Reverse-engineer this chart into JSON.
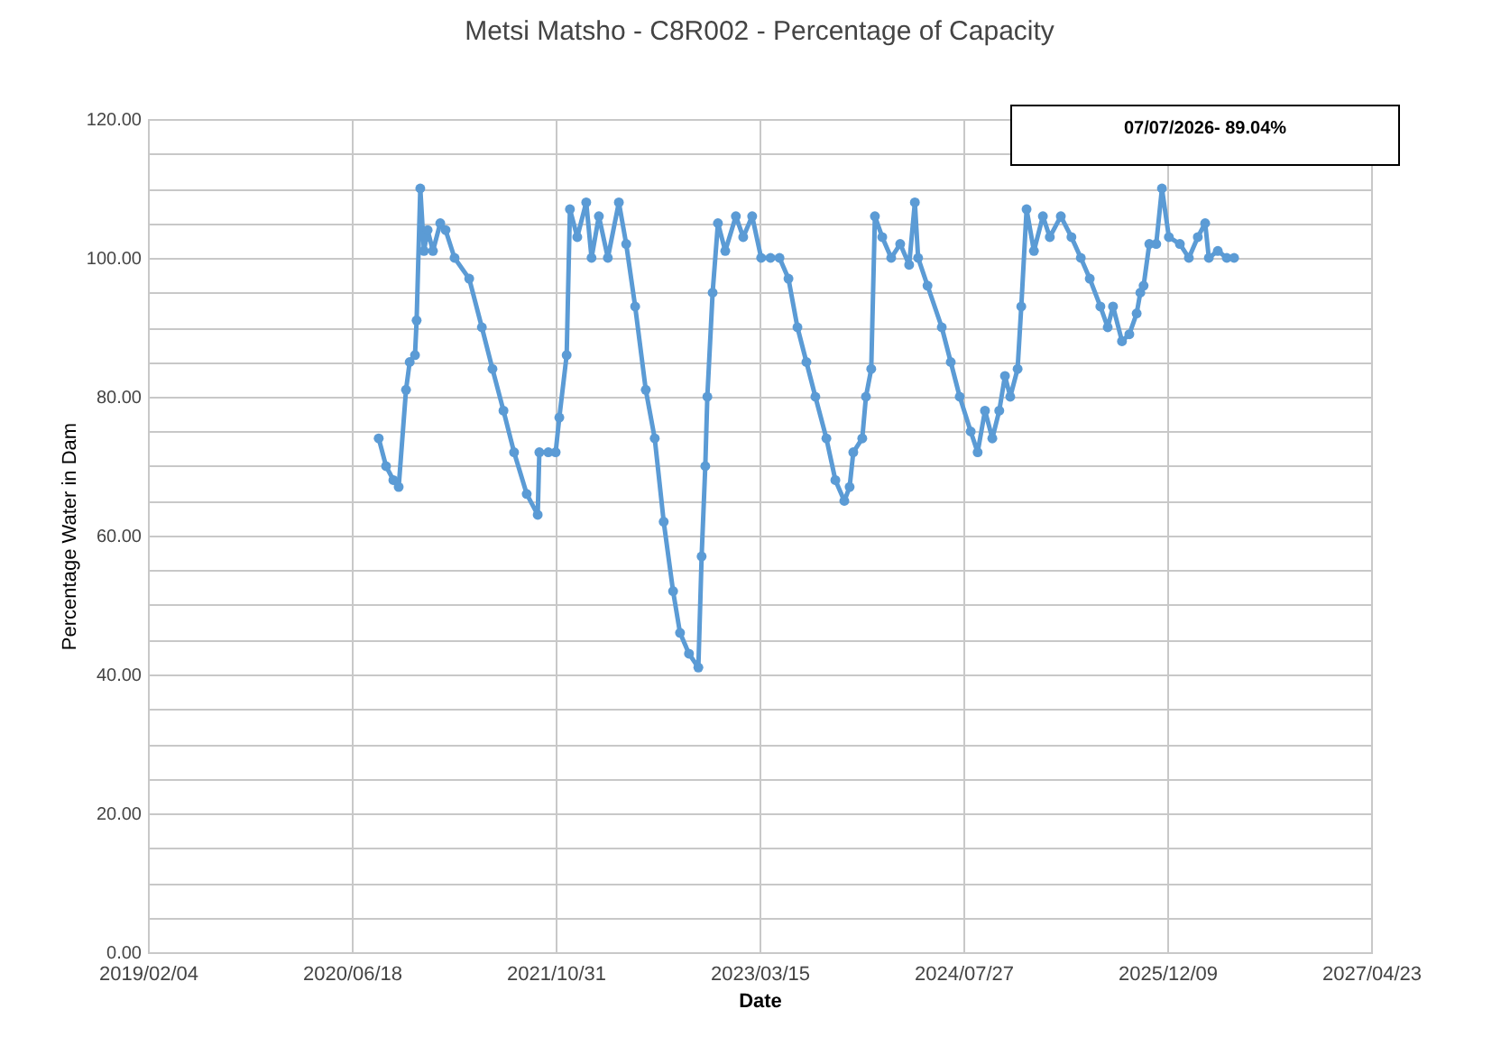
{
  "chart_data": {
    "type": "line",
    "title": "Metsi Matsho - C8R002 - Percentage of Capacity",
    "xlabel": "Date",
    "ylabel": "Percentage Water in Dam",
    "annotations": [
      "07/07/2026- 89.04%"
    ],
    "x": [
      "2020-08-23",
      "2020-09-10",
      "2020-09-28",
      "2020-10-11",
      "2020-10-29",
      "2020-11-07",
      "2020-11-20",
      "2020-11-24",
      "2020-12-03",
      "2020-12-12",
      "2020-12-21",
      "2021-01-03",
      "2021-01-21",
      "2021-02-03",
      "2021-02-25",
      "2021-04-02",
      "2021-05-03",
      "2021-05-29",
      "2021-06-25",
      "2021-07-21",
      "2021-08-21",
      "2021-09-17",
      "2021-09-21",
      "2021-10-13",
      "2021-10-31",
      "2021-11-09",
      "2021-11-27",
      "2021-12-05",
      "2021-12-23",
      "2022-01-14",
      "2022-01-27",
      "2022-02-14",
      "2022-03-08",
      "2022-04-04",
      "2022-04-22",
      "2022-05-14",
      "2022-06-09",
      "2022-07-01",
      "2022-07-23",
      "2022-08-15",
      "2022-09-01",
      "2022-09-23",
      "2022-10-16",
      "2022-10-24",
      "2022-11-02",
      "2022-11-07",
      "2022-11-20",
      "2022-12-03",
      "2022-12-21",
      "2023-01-16",
      "2023-02-03",
      "2023-02-25",
      "2023-03-19",
      "2023-04-11",
      "2023-05-03",
      "2023-05-25",
      "2023-06-16",
      "2023-07-08",
      "2023-07-30",
      "2023-08-26",
      "2023-09-17",
      "2023-10-09",
      "2023-10-22",
      "2023-10-31",
      "2023-11-22",
      "2023-12-01",
      "2023-12-14",
      "2023-12-23",
      "2024-01-10",
      "2024-02-01",
      "2024-02-23",
      "2024-03-16",
      "2024-03-30",
      "2024-04-07",
      "2024-04-30",
      "2024-06-04",
      "2024-06-26",
      "2024-07-18",
      "2024-08-14",
      "2024-08-31",
      "2024-09-18",
      "2024-10-06",
      "2024-10-23",
      "2024-11-06",
      "2024-11-19",
      "2024-12-07",
      "2024-12-16",
      "2024-12-29",
      "2025-01-16",
      "2025-02-07",
      "2025-02-24",
      "2025-03-23",
      "2025-04-18",
      "2025-05-11",
      "2025-06-02",
      "2025-06-28",
      "2025-07-16",
      "2025-07-29",
      "2025-08-20",
      "2025-09-07",
      "2025-09-25",
      "2025-10-04",
      "2025-10-12",
      "2025-10-26",
      "2025-11-12",
      "2025-11-26",
      "2025-12-13",
      "2026-01-09",
      "2026-01-31",
      "2026-02-22",
      "2026-03-12",
      "2026-03-21",
      "2026-04-12",
      "2026-05-04",
      "2026-05-22"
    ],
    "series": [
      {
        "color": "#5b9bd5",
        "values": [
          74,
          70,
          68,
          67,
          81,
          85,
          86,
          91,
          110,
          101,
          104,
          101,
          105,
          104,
          100,
          97,
          90,
          84,
          78,
          72,
          66,
          63,
          72,
          72,
          72,
          77,
          86,
          107,
          103,
          108,
          100,
          106,
          100,
          108,
          102,
          93,
          81,
          74,
          62,
          52,
          46,
          43,
          41,
          57,
          70,
          80,
          95,
          105,
          101,
          106,
          103,
          106,
          100,
          100,
          100,
          97,
          90,
          85,
          80,
          74,
          68,
          65,
          67,
          72,
          74,
          80,
          84,
          106,
          103,
          100,
          102,
          99,
          108,
          100,
          96,
          90,
          85,
          80,
          75,
          72,
          78,
          74,
          78,
          83,
          80,
          84,
          93,
          107,
          101,
          106,
          103,
          106,
          103,
          100,
          97,
          93,
          90,
          93,
          88,
          89,
          92,
          95,
          96,
          102,
          102,
          110,
          103,
          102,
          100,
          103,
          105,
          100,
          101,
          100,
          100
        ]
      }
    ],
    "xlim": [
      "2019-02-04",
      "2027-04-23"
    ],
    "xticks": [
      {
        "value": "2019-02-04",
        "label": "2019/02/04"
      },
      {
        "value": "2020-06-18",
        "label": "2020/06/18"
      },
      {
        "value": "2021-10-31",
        "label": "2021/10/31"
      },
      {
        "value": "2023-03-15",
        "label": "2023/03/15"
      },
      {
        "value": "2024-07-27",
        "label": "2024/07/27"
      },
      {
        "value": "2025-12-09",
        "label": "2025/12/09"
      },
      {
        "value": "2027-04-23",
        "label": "2027/04/23"
      }
    ],
    "ylim": [
      0,
      120
    ],
    "yticks": [
      {
        "value": 0,
        "label": "0.00"
      },
      {
        "value": 5,
        "label": null
      },
      {
        "value": 10,
        "label": null
      },
      {
        "value": 15,
        "label": null
      },
      {
        "value": 20,
        "label": "20.00"
      },
      {
        "value": 25,
        "label": null
      },
      {
        "value": 30,
        "label": null
      },
      {
        "value": 35,
        "label": null
      },
      {
        "value": 40,
        "label": "40.00"
      },
      {
        "value": 45,
        "label": null
      },
      {
        "value": 50,
        "label": null
      },
      {
        "value": 55,
        "label": null
      },
      {
        "value": 60,
        "label": "60.00"
      },
      {
        "value": 65,
        "label": null
      },
      {
        "value": 70,
        "label": null
      },
      {
        "value": 75,
        "label": null
      },
      {
        "value": 80,
        "label": "80.00"
      },
      {
        "value": 85,
        "label": null
      },
      {
        "value": 90,
        "label": null
      },
      {
        "value": 95,
        "label": null
      },
      {
        "value": 100,
        "label": "100.00"
      },
      {
        "value": 105,
        "label": null
      },
      {
        "value": 110,
        "label": null
      },
      {
        "value": 115,
        "label": null
      },
      {
        "value": 120,
        "label": "120.00"
      }
    ],
    "grid": true,
    "marker": "circle",
    "line_style": "solid"
  }
}
